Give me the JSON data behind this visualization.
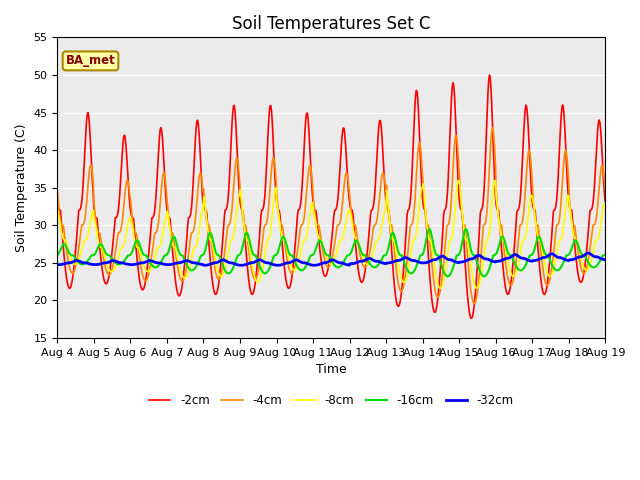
{
  "title": "Soil Temperatures Set C",
  "xlabel": "Time",
  "ylabel": "Soil Temperature (C)",
  "ylim": [
    15,
    55
  ],
  "annotation": "BA_met",
  "background_color": "#ebebeb",
  "grid_color": "#ffffff",
  "tick_dates": [
    "Aug 4",
    "Aug 5",
    "Aug 6",
    "Aug 7",
    "Aug 8",
    "Aug 9",
    "Aug 10",
    "Aug 11",
    "Aug 12",
    "Aug 13",
    "Aug 14",
    "Aug 15",
    "Aug 16",
    "Aug 17",
    "Aug 18",
    "Aug 19"
  ],
  "series": [
    {
      "label": "-2cm",
      "color": "#ff0000",
      "lw": 1.2,
      "amp_day": [
        13,
        11,
        12,
        13,
        14,
        14,
        13,
        11,
        12,
        16,
        17,
        18,
        14,
        14,
        12,
        12
      ],
      "base_day": [
        32,
        31,
        31,
        31,
        32,
        32,
        32,
        32,
        32,
        32,
        32,
        32,
        32,
        32,
        32,
        32
      ],
      "phase": 0.0,
      "night_min": [
        22,
        19,
        18,
        18,
        19,
        20,
        20,
        18,
        18,
        19,
        22,
        22,
        22,
        23,
        25,
        25
      ]
    },
    {
      "label": "-4cm",
      "color": "#ff8800",
      "lw": 1.2,
      "amp_day": [
        8,
        7,
        8,
        8,
        9,
        9,
        8,
        7,
        7,
        11,
        12,
        13,
        10,
        10,
        8,
        8
      ],
      "base_day": [
        30,
        29,
        29,
        29,
        30,
        30,
        30,
        30,
        30,
        30,
        30,
        30,
        30,
        30,
        30,
        30
      ],
      "phase": 0.08,
      "night_min": [
        22,
        22,
        22,
        22,
        23,
        23,
        23,
        22,
        22,
        23,
        24,
        24,
        24,
        24,
        25,
        25
      ]
    },
    {
      "label": "-8cm",
      "color": "#ffff00",
      "lw": 1.2,
      "amp_day": [
        4,
        4,
        4,
        5,
        6,
        7,
        5,
        4,
        4,
        7,
        8,
        8,
        6,
        6,
        5,
        5
      ],
      "base_day": [
        28,
        27,
        27,
        27,
        28,
        28,
        28,
        28,
        28,
        28,
        28,
        28,
        28,
        28,
        28,
        28
      ],
      "phase": 0.15,
      "night_min": [
        23,
        23,
        23,
        23,
        24,
        24,
        24,
        23,
        23,
        24,
        24,
        24,
        24,
        25,
        25,
        25
      ]
    },
    {
      "label": "-16cm",
      "color": "#00dd00",
      "lw": 1.5,
      "amp_day": [
        1.5,
        1.5,
        2,
        2.5,
        3,
        3,
        2.5,
        2,
        2,
        3,
        3.5,
        3.5,
        2.5,
        2.5,
        2,
        2
      ],
      "base_day": [
        26,
        26,
        26,
        26,
        26,
        26,
        26,
        26,
        26,
        26,
        26,
        26,
        26,
        26,
        26,
        26
      ],
      "phase": 0.35,
      "night_min": [
        24,
        24,
        24,
        24,
        25,
        25,
        25,
        24,
        24,
        25,
        25,
        25,
        25,
        25,
        26,
        26
      ]
    },
    {
      "label": "-32cm",
      "color": "#0000ff",
      "lw": 2.0,
      "amp_day": [
        0.3,
        0.3,
        0.3,
        0.3,
        0.4,
        0.4,
        0.4,
        0.4,
        0.4,
        0.4,
        0.5,
        0.5,
        0.5,
        0.5,
        0.5,
        0.5
      ],
      "base_day": [
        25,
        25,
        25,
        25,
        25,
        25,
        25,
        25,
        25.2,
        25.3,
        25.4,
        25.5,
        25.6,
        25.7,
        25.8,
        25.9
      ],
      "phase": 0.7,
      "night_min": [
        24.5,
        24.5,
        24.5,
        24.5,
        24.7,
        24.8,
        24.8,
        24.8,
        25,
        25,
        25.2,
        25.3,
        25.4,
        25.5,
        25.6,
        25.7
      ]
    }
  ],
  "title_fontsize": 12,
  "axis_fontsize": 9,
  "tick_fontsize": 8,
  "sharpness": 3.5
}
